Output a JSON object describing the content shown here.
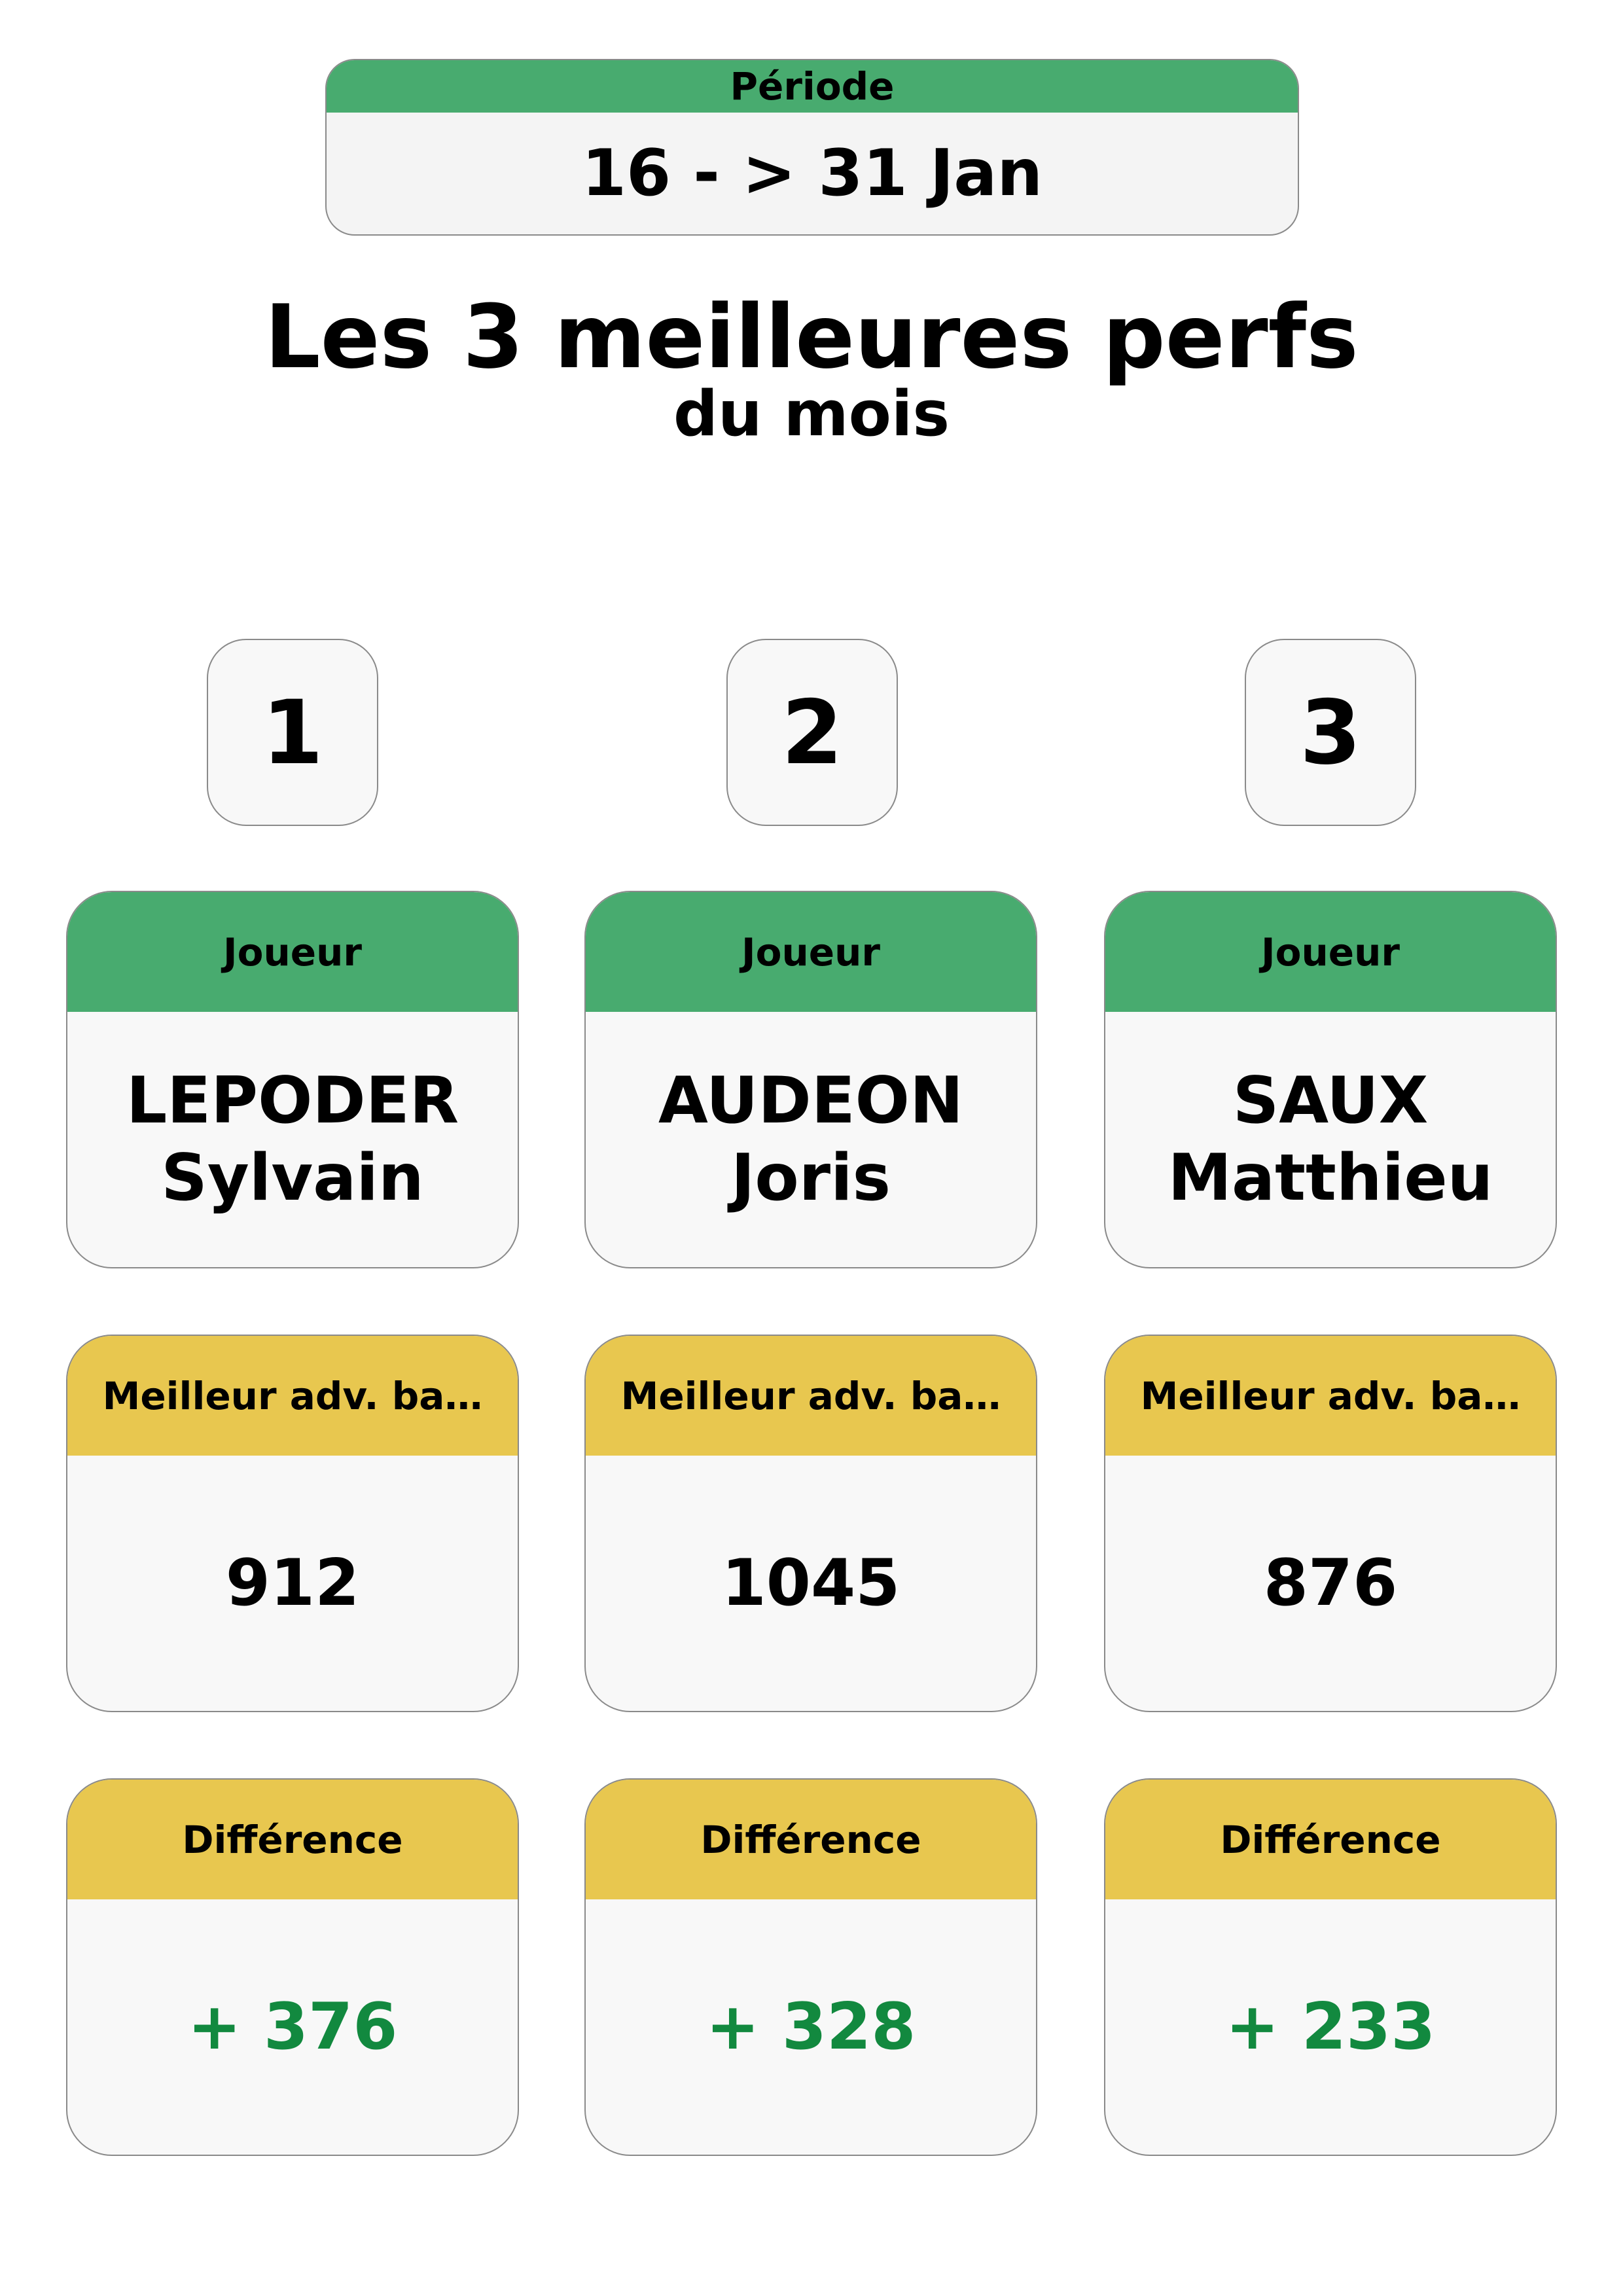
{
  "period": {
    "label": "Période",
    "value": "16 - > 31 Jan"
  },
  "title": "Les 3 meilleures perfs",
  "subtitle": "du mois",
  "players": [
    {
      "rank": 1,
      "player_label": "Joueur",
      "last_name": "LEPODER",
      "first_name": "Sylvain",
      "best_label": "Meilleur adv. ba…",
      "best": 912,
      "diff_label": "Différence",
      "diff": "+ 376"
    },
    {
      "rank": 2,
      "player_label": "Joueur",
      "last_name": "AUDEON",
      "first_name": "Joris",
      "best_label": "Meilleur adv. ba…",
      "best": 1045,
      "diff_label": "Différence",
      "diff": "+ 328"
    },
    {
      "rank": 3,
      "player_label": "Joueur",
      "last_name": "SAUX",
      "first_name": "Matthieu",
      "best_label": "Meilleur adv. ba…",
      "best": 876,
      "diff_label": "Différence",
      "diff": "+ 233"
    }
  ]
}
